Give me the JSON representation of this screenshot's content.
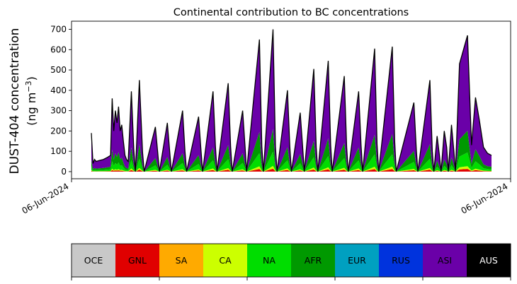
{
  "chart_data": {
    "type": "area",
    "title": "Continental contribution to BC concentrations",
    "ylabel_line1": "DUST-404 concentration",
    "ylabel_line2_pre": "(ng m",
    "ylabel_line2_sup": "−3",
    "ylabel_line2_post": ")",
    "ylim": [
      -35,
      740
    ],
    "yticks": [
      0,
      100,
      200,
      300,
      400,
      500,
      600,
      700
    ],
    "xtick_labels": [
      "06-Jun-2024",
      "06-Jun-2024"
    ],
    "grid": false,
    "legend_placement": "bottom colorbar",
    "regions": [
      {
        "name": "OCE",
        "color": "#c8c8c8"
      },
      {
        "name": "GNL",
        "color": "#e00000"
      },
      {
        "name": "SA",
        "color": "#ffaa00"
      },
      {
        "name": "CA",
        "color": "#ccff00"
      },
      {
        "name": "NA",
        "color": "#00dd00"
      },
      {
        "name": "AFR",
        "color": "#009900"
      },
      {
        "name": "EUR",
        "color": "#00a0c0"
      },
      {
        "name": "RUS",
        "color": "#0033dd"
      },
      {
        "name": "ASI",
        "color": "#6a00a8"
      },
      {
        "name": "AUS",
        "color": "#000000"
      }
    ],
    "total_series": {
      "name": "total",
      "x_fraction": [
        0.0,
        0.004,
        0.008,
        0.012,
        0.02,
        0.03,
        0.04,
        0.048,
        0.052,
        0.056,
        0.06,
        0.064,
        0.068,
        0.072,
        0.076,
        0.08,
        0.084,
        0.088,
        0.092,
        0.1,
        0.106,
        0.11,
        0.12,
        0.128,
        0.132,
        0.16,
        0.166,
        0.17,
        0.19,
        0.196,
        0.2,
        0.228,
        0.234,
        0.238,
        0.268,
        0.274,
        0.278,
        0.304,
        0.31,
        0.314,
        0.342,
        0.348,
        0.352,
        0.378,
        0.384,
        0.388,
        0.42,
        0.426,
        0.43,
        0.454,
        0.46,
        0.464,
        0.49,
        0.496,
        0.5,
        0.522,
        0.528,
        0.532,
        0.556,
        0.562,
        0.566,
        0.592,
        0.598,
        0.602,
        0.632,
        0.638,
        0.642,
        0.668,
        0.674,
        0.678,
        0.708,
        0.714,
        0.718,
        0.752,
        0.758,
        0.762,
        0.806,
        0.812,
        0.816,
        0.846,
        0.852,
        0.856,
        0.864,
        0.87,
        0.874,
        0.882,
        0.888,
        0.892,
        0.9,
        0.906,
        0.91,
        0.92,
        0.94,
        0.95,
        0.96,
        0.97,
        0.98,
        0.99,
        1.0
      ],
      "y": [
        190,
        40,
        60,
        50,
        55,
        60,
        70,
        80,
        360,
        200,
        300,
        240,
        320,
        200,
        230,
        150,
        80,
        60,
        50,
        395,
        110,
        0,
        450,
        95,
        0,
        220,
        90,
        0,
        240,
        95,
        0,
        300,
        100,
        0,
        270,
        105,
        0,
        395,
        130,
        0,
        435,
        125,
        0,
        300,
        125,
        0,
        650,
        125,
        0,
        700,
        125,
        0,
        400,
        125,
        0,
        290,
        125,
        0,
        505,
        120,
        0,
        545,
        130,
        0,
        470,
        120,
        0,
        395,
        130,
        0,
        605,
        135,
        0,
        615,
        150,
        0,
        340,
        110,
        0,
        450,
        100,
        0,
        175,
        80,
        0,
        200,
        120,
        0,
        230,
        100,
        0,
        530,
        670,
        130,
        365,
        250,
        120,
        90,
        80
      ]
    }
  }
}
